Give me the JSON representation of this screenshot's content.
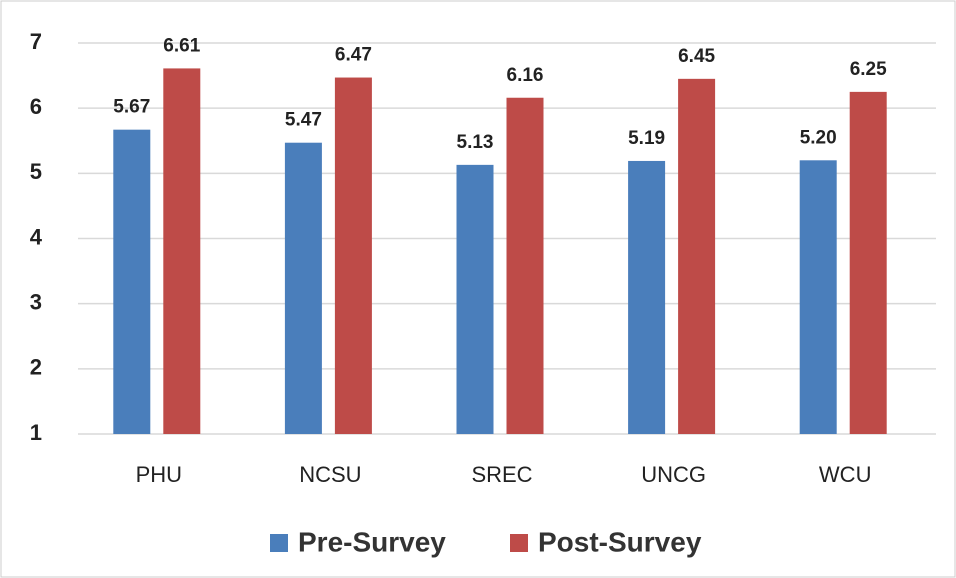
{
  "chart_data": {
    "type": "bar",
    "categories": [
      "PHU",
      "NCSU",
      "SREC",
      "UNCG",
      "WCU"
    ],
    "series": [
      {
        "name": "Pre-Survey",
        "color": "#4a7ebb",
        "values": [
          5.67,
          5.47,
          5.13,
          5.19,
          5.2
        ],
        "value_labels": [
          "5.67",
          "5.47",
          "5.13",
          "5.19",
          "5.20"
        ]
      },
      {
        "name": "Post-Survey",
        "color": "#be4b48",
        "values": [
          6.61,
          6.47,
          6.16,
          6.45,
          6.25
        ],
        "value_labels": [
          "6.61",
          "6.47",
          "6.16",
          "6.45",
          "6.25"
        ]
      }
    ],
    "ylim": [
      1,
      7
    ],
    "yticks": [
      1,
      2,
      3,
      4,
      5,
      6,
      7
    ],
    "grid": true,
    "legend": "bottom"
  }
}
